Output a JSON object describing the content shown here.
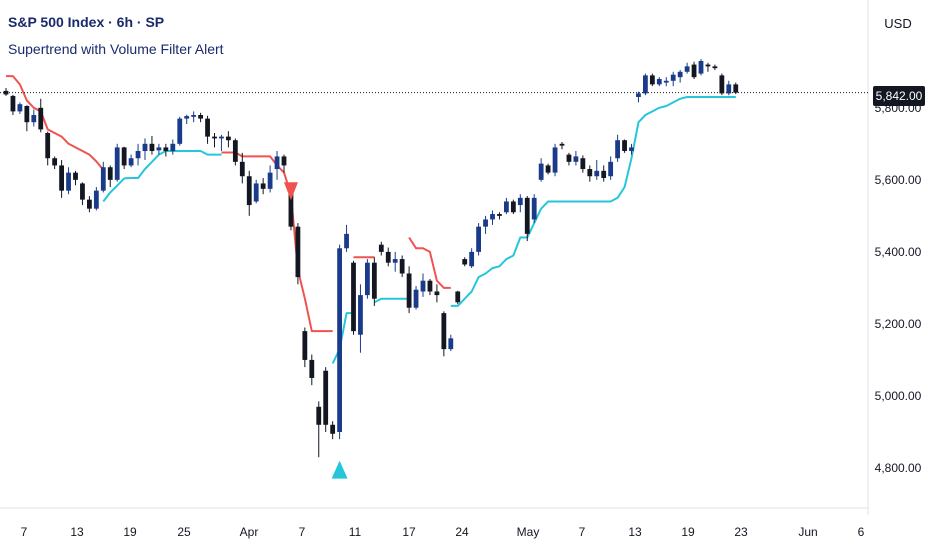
{
  "header": {
    "title": "S&P 500 Index · 6h · SP",
    "indicator": "Supertrend with Volume Filter Alert"
  },
  "axis": {
    "currency": "USD",
    "last_price": "5,842.00"
  },
  "chart_data": {
    "type": "candlestick",
    "y_ticks": [
      "4,800.00",
      "5,000.00",
      "5,200.00",
      "5,400.00",
      "5,600.00",
      "5,800.00"
    ],
    "x_ticks": [
      "7",
      "13",
      "19",
      "25",
      "Apr",
      "7",
      "11",
      "17",
      "24",
      "May",
      "7",
      "13",
      "19",
      "23",
      "Jun",
      "6"
    ],
    "ylim": [
      4740,
      6020
    ],
    "last_price": 5842,
    "supertrend_colors": {
      "down": "#ef5350",
      "up": "#26c6da"
    },
    "candle_colors": {
      "up": "#1a3a8a",
      "down": "#131722"
    },
    "candles": [
      [
        0,
        5847,
        5855,
        5833,
        5837
      ],
      [
        1,
        5833,
        5836,
        5780,
        5790
      ],
      [
        2,
        5790,
        5815,
        5783,
        5810
      ],
      [
        3,
        5805,
        5807,
        5735,
        5760
      ],
      [
        4,
        5760,
        5795,
        5748,
        5780
      ],
      [
        5,
        5800,
        5825,
        5732,
        5740
      ],
      [
        6,
        5730,
        5734,
        5640,
        5660
      ],
      [
        7,
        5660,
        5665,
        5630,
        5640
      ],
      [
        8,
        5640,
        5655,
        5550,
        5570
      ],
      [
        9,
        5570,
        5635,
        5560,
        5620
      ],
      [
        10,
        5620,
        5625,
        5585,
        5600
      ],
      [
        11,
        5590,
        5593,
        5530,
        5545
      ],
      [
        12,
        5545,
        5555,
        5510,
        5520
      ],
      [
        13,
        5520,
        5580,
        5515,
        5570
      ],
      [
        14,
        5570,
        5650,
        5565,
        5635
      ],
      [
        15,
        5635,
        5640,
        5580,
        5600
      ],
      [
        16,
        5600,
        5700,
        5595,
        5690
      ],
      [
        17,
        5690,
        5692,
        5630,
        5640
      ],
      [
        18,
        5640,
        5670,
        5635,
        5660
      ],
      [
        19,
        5660,
        5700,
        5640,
        5680
      ],
      [
        20,
        5680,
        5715,
        5655,
        5700
      ],
      [
        21,
        5700,
        5722,
        5670,
        5680
      ],
      [
        22,
        5682,
        5700,
        5670,
        5690
      ],
      [
        23,
        5690,
        5700,
        5665,
        5680
      ],
      [
        24,
        5680,
        5712,
        5670,
        5700
      ],
      [
        25,
        5700,
        5775,
        5695,
        5770
      ],
      [
        26,
        5770,
        5781,
        5755,
        5777
      ],
      [
        27,
        5775,
        5790,
        5760,
        5780
      ],
      [
        28,
        5780,
        5786,
        5760,
        5770
      ],
      [
        29,
        5770,
        5778,
        5700,
        5720
      ],
      [
        30,
        5720,
        5730,
        5690,
        5715
      ],
      [
        31,
        5715,
        5725,
        5680,
        5720
      ],
      [
        32,
        5720,
        5735,
        5690,
        5710
      ],
      [
        33,
        5710,
        5715,
        5640,
        5650
      ],
      [
        34,
        5650,
        5675,
        5590,
        5610
      ],
      [
        35,
        5610,
        5625,
        5500,
        5530
      ],
      [
        36,
        5540,
        5600,
        5535,
        5590
      ],
      [
        37,
        5590,
        5605,
        5560,
        5575
      ],
      [
        38,
        5575,
        5640,
        5565,
        5620
      ],
      [
        39,
        5630,
        5680,
        5600,
        5665
      ],
      [
        40,
        5665,
        5670,
        5620,
        5640
      ],
      [
        41,
        5570,
        5575,
        5460,
        5470
      ],
      [
        42,
        5470,
        5480,
        5310,
        5330
      ],
      [
        43,
        5180,
        5190,
        5080,
        5100
      ],
      [
        44,
        5100,
        5115,
        5030,
        5050
      ],
      [
        45,
        4970,
        4985,
        4830,
        4920
      ],
      [
        46,
        5070,
        5080,
        4900,
        4920
      ],
      [
        47,
        4920,
        4930,
        4880,
        4895
      ],
      [
        48,
        4900,
        5420,
        4880,
        5410
      ],
      [
        49,
        5410,
        5475,
        5400,
        5450
      ],
      [
        50,
        5370,
        5375,
        5170,
        5180
      ],
      [
        51,
        5170,
        5310,
        5120,
        5280
      ],
      [
        52,
        5280,
        5380,
        5270,
        5370
      ],
      [
        53,
        5370,
        5385,
        5250,
        5270
      ],
      [
        54,
        5420,
        5428,
        5390,
        5400
      ],
      [
        55,
        5400,
        5412,
        5360,
        5370
      ],
      [
        56,
        5370,
        5400,
        5345,
        5380
      ],
      [
        57,
        5380,
        5390,
        5330,
        5340
      ],
      [
        58,
        5340,
        5360,
        5230,
        5245
      ],
      [
        59,
        5245,
        5305,
        5240,
        5295
      ],
      [
        60,
        5290,
        5340,
        5275,
        5320
      ],
      [
        61,
        5320,
        5325,
        5280,
        5290
      ],
      [
        62,
        5290,
        5310,
        5260,
        5280
      ],
      [
        63,
        5230,
        5235,
        5110,
        5130
      ],
      [
        64,
        5130,
        5170,
        5125,
        5160
      ],
      [
        65,
        5290,
        5292,
        5255,
        5260
      ],
      [
        66,
        5380,
        5385,
        5360,
        5365
      ],
      [
        67,
        5360,
        5410,
        5355,
        5400
      ],
      [
        68,
        5400,
        5480,
        5390,
        5470
      ],
      [
        69,
        5470,
        5500,
        5450,
        5490
      ],
      [
        70,
        5490,
        5515,
        5475,
        5505
      ],
      [
        71,
        5505,
        5510,
        5490,
        5500
      ],
      [
        72,
        5510,
        5550,
        5505,
        5540
      ],
      [
        73,
        5540,
        5545,
        5505,
        5510
      ],
      [
        74,
        5530,
        5560,
        5510,
        5550
      ],
      [
        75,
        5550,
        5555,
        5430,
        5450
      ],
      [
        76,
        5490,
        5560,
        5480,
        5550
      ],
      [
        77,
        5600,
        5660,
        5595,
        5645
      ],
      [
        78,
        5640,
        5645,
        5615,
        5620
      ],
      [
        79,
        5620,
        5700,
        5610,
        5690
      ],
      [
        80,
        5700,
        5705,
        5685,
        5695
      ],
      [
        81,
        5670,
        5675,
        5640,
        5650
      ],
      [
        82,
        5650,
        5680,
        5640,
        5665
      ],
      [
        83,
        5660,
        5668,
        5620,
        5630
      ],
      [
        84,
        5630,
        5640,
        5595,
        5610
      ],
      [
        85,
        5610,
        5655,
        5600,
        5625
      ],
      [
        86,
        5625,
        5640,
        5595,
        5605
      ],
      [
        87,
        5610,
        5665,
        5600,
        5650
      ],
      [
        88,
        5660,
        5725,
        5650,
        5710
      ],
      [
        89,
        5710,
        5712,
        5675,
        5680
      ],
      [
        90,
        5680,
        5700,
        5670,
        5690
      ],
      [
        91,
        5830,
        5845,
        5815,
        5840
      ],
      [
        92,
        5840,
        5895,
        5835,
        5890
      ],
      [
        93,
        5890,
        5895,
        5860,
        5865
      ],
      [
        94,
        5865,
        5885,
        5860,
        5880
      ],
      [
        95,
        5870,
        5885,
        5860,
        5875
      ],
      [
        96,
        5875,
        5900,
        5860,
        5892
      ],
      [
        97,
        5885,
        5905,
        5870,
        5900
      ],
      [
        98,
        5900,
        5925,
        5895,
        5915
      ],
      [
        99,
        5920,
        5928,
        5880,
        5885
      ],
      [
        100,
        5895,
        5935,
        5890,
        5930
      ],
      [
        101,
        5920,
        5925,
        5900,
        5915
      ],
      [
        102,
        5915,
        5920,
        5905,
        5910
      ],
      [
        103,
        5890,
        5895,
        5835,
        5840
      ],
      [
        104,
        5840,
        5875,
        5835,
        5865
      ],
      [
        105,
        5865,
        5870,
        5838,
        5842
      ]
    ],
    "supertrend": [
      [
        0,
        5888,
        "down"
      ],
      [
        1,
        5888,
        "down"
      ],
      [
        2,
        5865,
        "down"
      ],
      [
        3,
        5820,
        "down"
      ],
      [
        4,
        5800,
        "down"
      ],
      [
        5,
        5790,
        "down"
      ],
      [
        6,
        5740,
        "down"
      ],
      [
        7,
        5730,
        "down"
      ],
      [
        8,
        5720,
        "down"
      ],
      [
        9,
        5700,
        "down"
      ],
      [
        10,
        5690,
        "down"
      ],
      [
        11,
        5680,
        "down"
      ],
      [
        12,
        5670,
        "down"
      ],
      [
        13,
        5651,
        "down"
      ],
      [
        14,
        5628,
        "down"
      ],
      [
        14,
        5540,
        "up"
      ],
      [
        15,
        5565,
        "up"
      ],
      [
        16,
        5584,
        "up"
      ],
      [
        17,
        5604,
        "up"
      ],
      [
        18,
        5605,
        "up"
      ],
      [
        19,
        5605,
        "up"
      ],
      [
        20,
        5630,
        "up"
      ],
      [
        21,
        5650,
        "up"
      ],
      [
        22,
        5670,
        "up"
      ],
      [
        23,
        5680,
        "up"
      ],
      [
        24,
        5680,
        "up"
      ],
      [
        25,
        5680,
        "up"
      ],
      [
        26,
        5680,
        "up"
      ],
      [
        27,
        5680,
        "up"
      ],
      [
        28,
        5680,
        "up"
      ],
      [
        29,
        5670,
        "up"
      ],
      [
        30,
        5670,
        "up"
      ],
      [
        31,
        5676,
        "down"
      ],
      [
        32,
        5676,
        "down"
      ],
      [
        33,
        5676,
        "down"
      ],
      [
        34,
        5665,
        "down"
      ],
      [
        35,
        5665,
        "down"
      ],
      [
        36,
        5665,
        "down"
      ],
      [
        37,
        5665,
        "down"
      ],
      [
        38,
        5665,
        "down"
      ],
      [
        39,
        5640,
        "down"
      ],
      [
        40,
        5620,
        "down"
      ],
      [
        41,
        5560,
        "down"
      ],
      [
        42,
        5350,
        "down"
      ],
      [
        43,
        5270,
        "down"
      ],
      [
        44,
        5180,
        "down"
      ],
      [
        45,
        5180,
        "down"
      ],
      [
        46,
        5180,
        "down"
      ],
      [
        47,
        5180,
        "down"
      ],
      [
        47,
        5090,
        "up"
      ],
      [
        48,
        5130,
        "up"
      ],
      [
        49,
        5230,
        "up"
      ],
      [
        50,
        5385,
        "down"
      ],
      [
        51,
        5385,
        "down"
      ],
      [
        52,
        5385,
        "down"
      ],
      [
        53,
        5385,
        "down"
      ],
      [
        53,
        5260,
        "up"
      ],
      [
        54,
        5270,
        "up"
      ],
      [
        55,
        5270,
        "up"
      ],
      [
        56,
        5270,
        "up"
      ],
      [
        57,
        5270,
        "up"
      ],
      [
        58,
        5440,
        "down"
      ],
      [
        59,
        5410,
        "down"
      ],
      [
        60,
        5410,
        "down"
      ],
      [
        61,
        5400,
        "down"
      ],
      [
        62,
        5320,
        "down"
      ],
      [
        63,
        5300,
        "down"
      ],
      [
        64,
        5300,
        "down"
      ],
      [
        64,
        5250,
        "up"
      ],
      [
        65,
        5250,
        "up"
      ],
      [
        66,
        5270,
        "up"
      ],
      [
        67,
        5290,
        "up"
      ],
      [
        68,
        5330,
        "up"
      ],
      [
        69,
        5340,
        "up"
      ],
      [
        70,
        5355,
        "up"
      ],
      [
        71,
        5360,
        "up"
      ],
      [
        72,
        5380,
        "up"
      ],
      [
        73,
        5390,
        "up"
      ],
      [
        74,
        5440,
        "up"
      ],
      [
        75,
        5440,
        "up"
      ],
      [
        76,
        5480,
        "up"
      ],
      [
        77,
        5520,
        "up"
      ],
      [
        78,
        5540,
        "up"
      ],
      [
        79,
        5540,
        "up"
      ],
      [
        80,
        5540,
        "up"
      ],
      [
        81,
        5540,
        "up"
      ],
      [
        82,
        5540,
        "up"
      ],
      [
        83,
        5540,
        "up"
      ],
      [
        84,
        5540,
        "up"
      ],
      [
        85,
        5540,
        "up"
      ],
      [
        86,
        5540,
        "up"
      ],
      [
        87,
        5540,
        "up"
      ],
      [
        88,
        5550,
        "up"
      ],
      [
        89,
        5580,
        "up"
      ],
      [
        90,
        5660,
        "up"
      ],
      [
        91,
        5760,
        "up"
      ],
      [
        92,
        5780,
        "up"
      ],
      [
        93,
        5790,
        "up"
      ],
      [
        94,
        5800,
        "up"
      ],
      [
        95,
        5805,
        "up"
      ],
      [
        96,
        5815,
        "up"
      ],
      [
        97,
        5825,
        "up"
      ],
      [
        98,
        5830,
        "up"
      ],
      [
        99,
        5830,
        "up"
      ],
      [
        100,
        5830,
        "up"
      ],
      [
        101,
        5830,
        "up"
      ],
      [
        102,
        5830,
        "up"
      ],
      [
        103,
        5830,
        "up"
      ],
      [
        104,
        5830,
        "up"
      ],
      [
        105,
        5830,
        "up"
      ]
    ],
    "signals": [
      {
        "type": "sell",
        "index": 41,
        "price": 5560
      },
      {
        "type": "buy",
        "index": 48,
        "price": 4815
      }
    ]
  }
}
